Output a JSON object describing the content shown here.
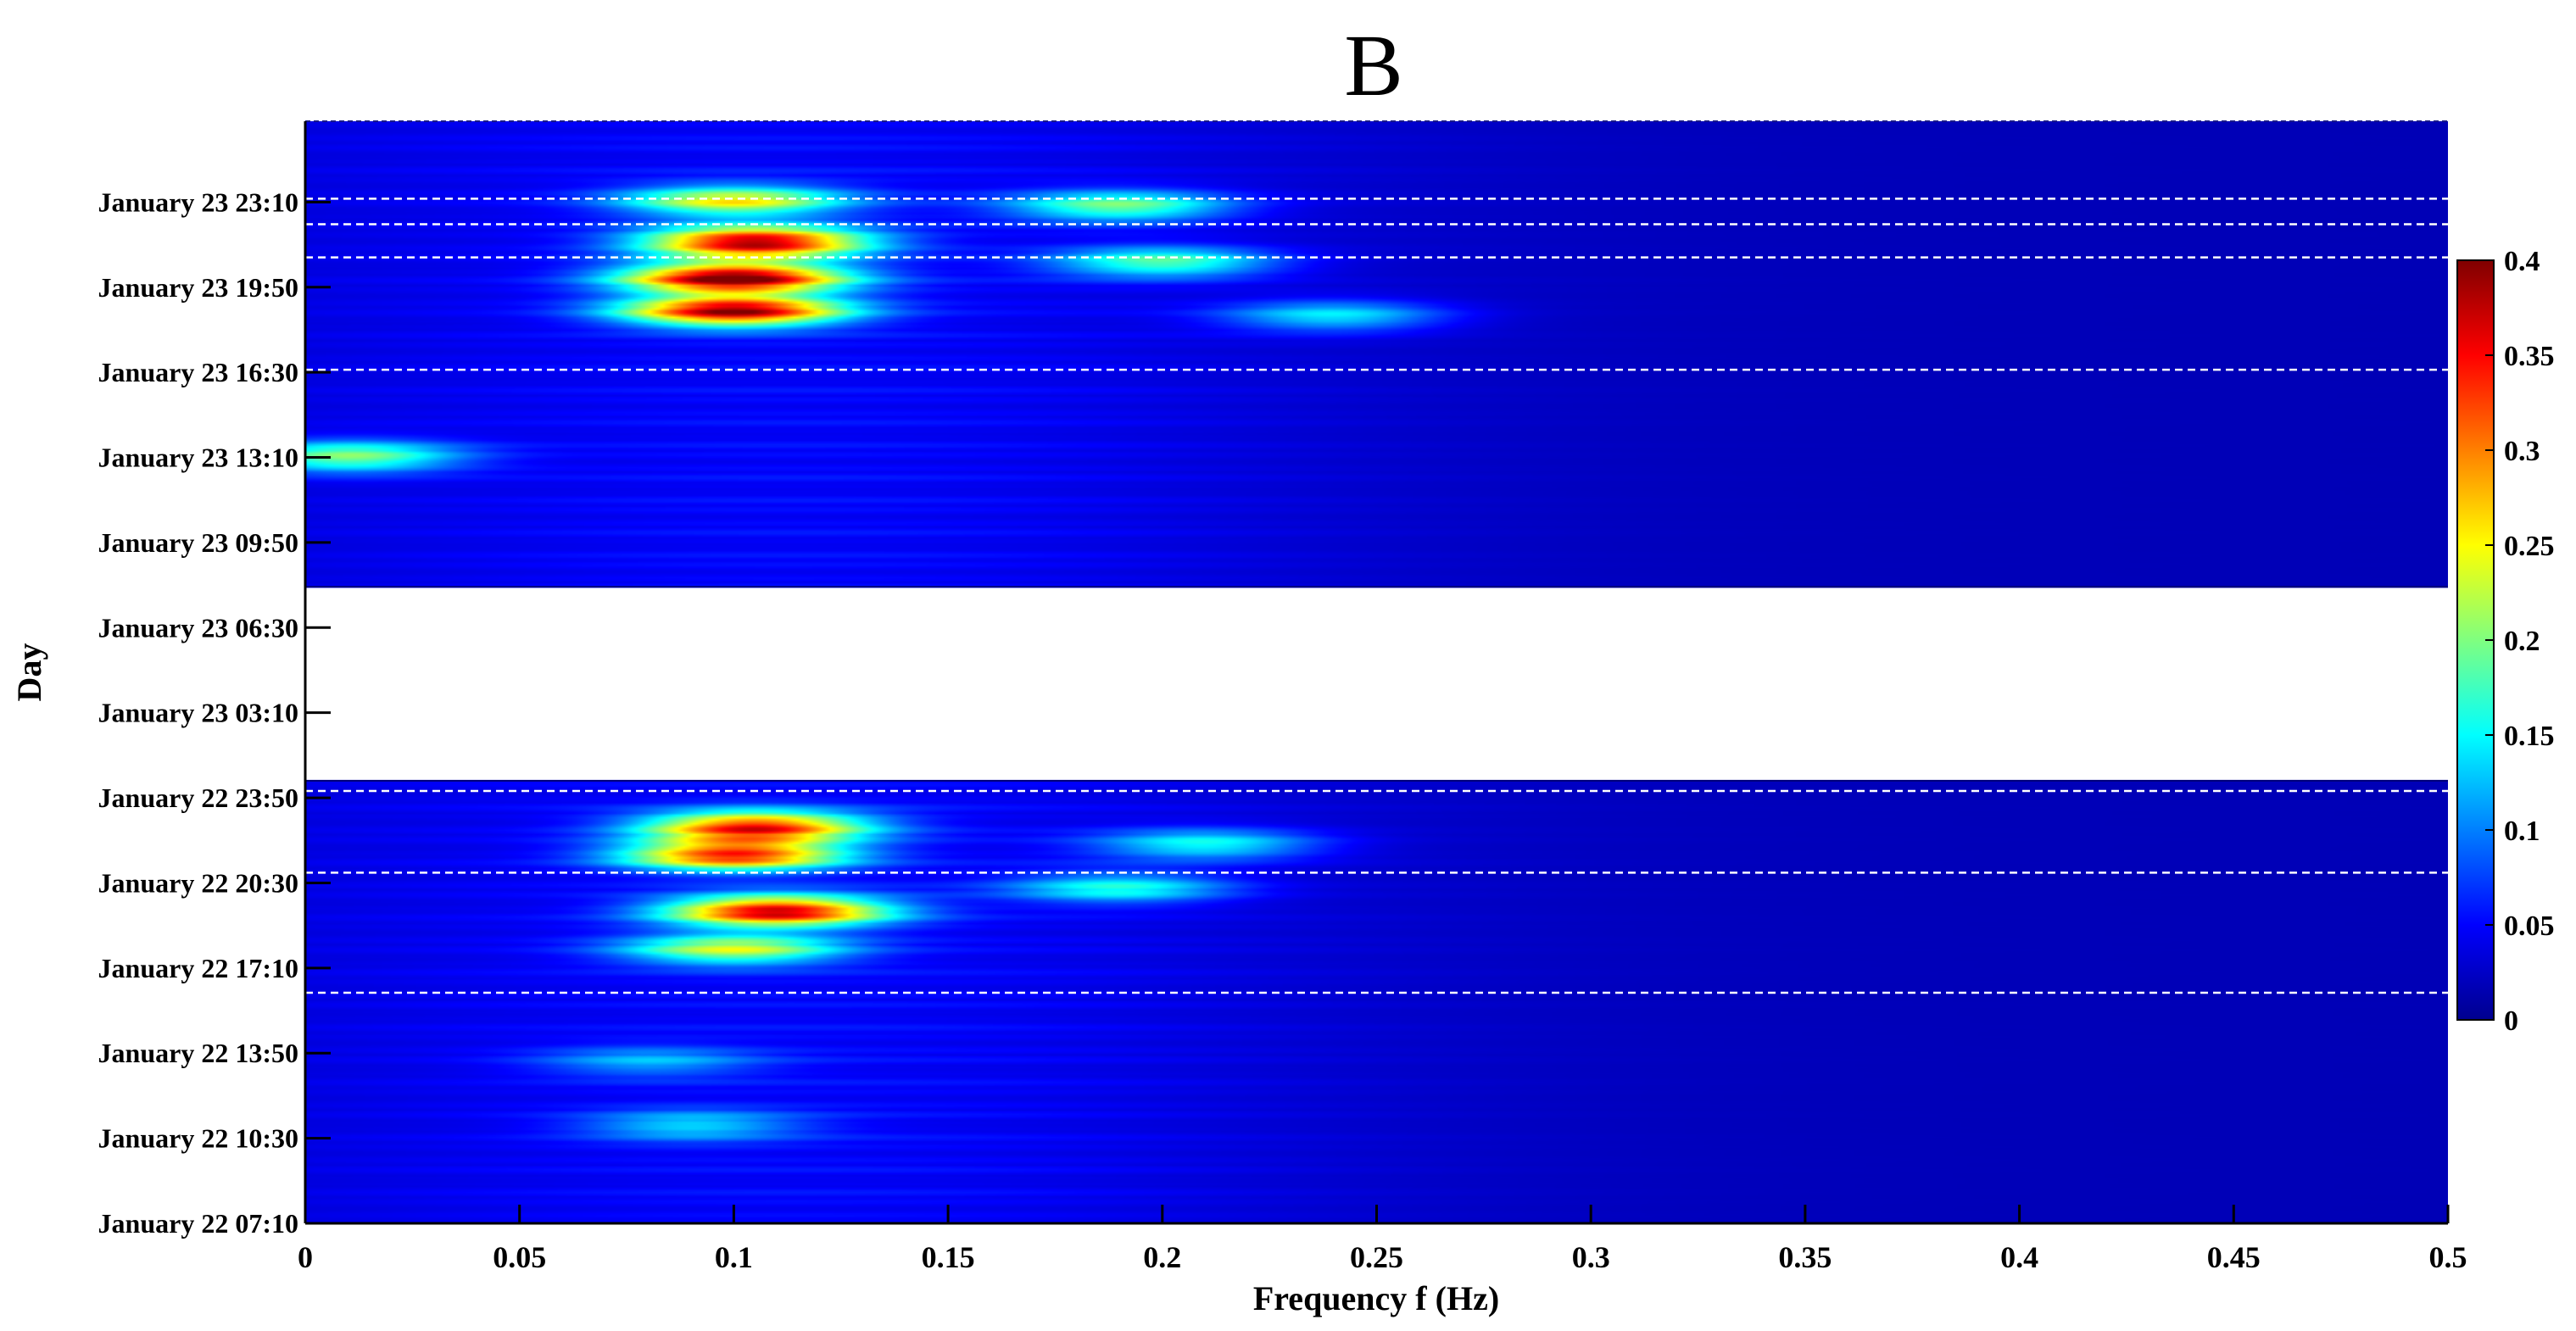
{
  "chart_data": {
    "type": "heatmap",
    "title": "B",
    "xlabel": "Frequency f (Hz)",
    "ylabel": "Day",
    "xlim": [
      0,
      0.5
    ],
    "x_ticks": [
      0,
      0.05,
      0.1,
      0.15,
      0.2,
      0.25,
      0.3,
      0.35,
      0.4,
      0.45,
      0.5
    ],
    "x_tick_labels": [
      "0",
      "0.05",
      "0.1",
      "0.15",
      "0.2",
      "0.25",
      "0.3",
      "0.35",
      "0.4",
      "0.45",
      "0.5"
    ],
    "y_axis": {
      "unit": "hours since January 22 00:00",
      "range": [
        7.1667,
        50.3333
      ],
      "ticks": [
        {
          "value": 7.1667,
          "label": "January 22 07:10"
        },
        {
          "value": 10.5,
          "label": "January 22 10:30"
        },
        {
          "value": 13.8333,
          "label": "January 22 13:50"
        },
        {
          "value": 17.1667,
          "label": "January 22 17:10"
        },
        {
          "value": 20.5,
          "label": "January 22 20:30"
        },
        {
          "value": 23.8333,
          "label": "January 22 23:50"
        },
        {
          "value": 27.1667,
          "label": "January 23 03:10"
        },
        {
          "value": 30.5,
          "label": "January 23 06:30"
        },
        {
          "value": 33.8333,
          "label": "January 23 09:50"
        },
        {
          "value": 37.1667,
          "label": "January 23 13:10"
        },
        {
          "value": 40.5,
          "label": "January 23 16:30"
        },
        {
          "value": 43.8333,
          "label": "January 23 19:50"
        },
        {
          "value": 47.1667,
          "label": "January 23 23:10"
        }
      ]
    },
    "data_segments": [
      {
        "name": "January 22",
        "y_start": 7.1667,
        "y_end": 24.5
      },
      {
        "name": "January 23",
        "y_start": 32.1,
        "y_end": 50.3333
      }
    ],
    "dashed_lines_y": [
      16.2,
      20.9,
      24.1,
      40.6,
      45.0,
      46.3,
      47.3
    ],
    "colorbar": {
      "colormap": "jet",
      "range": [
        0,
        0.4
      ],
      "ticks": [
        0,
        0.05,
        0.1,
        0.15,
        0.2,
        0.25,
        0.3,
        0.35,
        0.4
      ],
      "tick_labels": [
        "0",
        "0.05",
        "0.1",
        "0.15",
        "0.2",
        "0.25",
        "0.3",
        "0.35",
        "0.4"
      ]
    },
    "peaks": [
      {
        "f": 0.105,
        "y": 45.6,
        "value": 0.38
      },
      {
        "f": 0.1,
        "y": 44.2,
        "value": 0.4
      },
      {
        "f": 0.1,
        "y": 42.9,
        "value": 0.37
      },
      {
        "f": 0.1,
        "y": 47.2,
        "value": 0.22
      },
      {
        "f": 0.19,
        "y": 47.0,
        "value": 0.17
      },
      {
        "f": 0.2,
        "y": 44.8,
        "value": 0.16
      },
      {
        "f": 0.24,
        "y": 42.7,
        "value": 0.12
      },
      {
        "f": 0.01,
        "y": 37.2,
        "value": 0.18
      },
      {
        "f": 0.105,
        "y": 22.7,
        "value": 0.33
      },
      {
        "f": 0.1,
        "y": 21.6,
        "value": 0.32
      },
      {
        "f": 0.11,
        "y": 19.4,
        "value": 0.36
      },
      {
        "f": 0.1,
        "y": 17.9,
        "value": 0.2
      },
      {
        "f": 0.21,
        "y": 22.0,
        "value": 0.13
      },
      {
        "f": 0.19,
        "y": 20.3,
        "value": 0.13
      },
      {
        "f": 0.09,
        "y": 11.0,
        "value": 0.1
      },
      {
        "f": 0.08,
        "y": 13.5,
        "value": 0.08
      }
    ],
    "legend": "colorbar on right"
  }
}
